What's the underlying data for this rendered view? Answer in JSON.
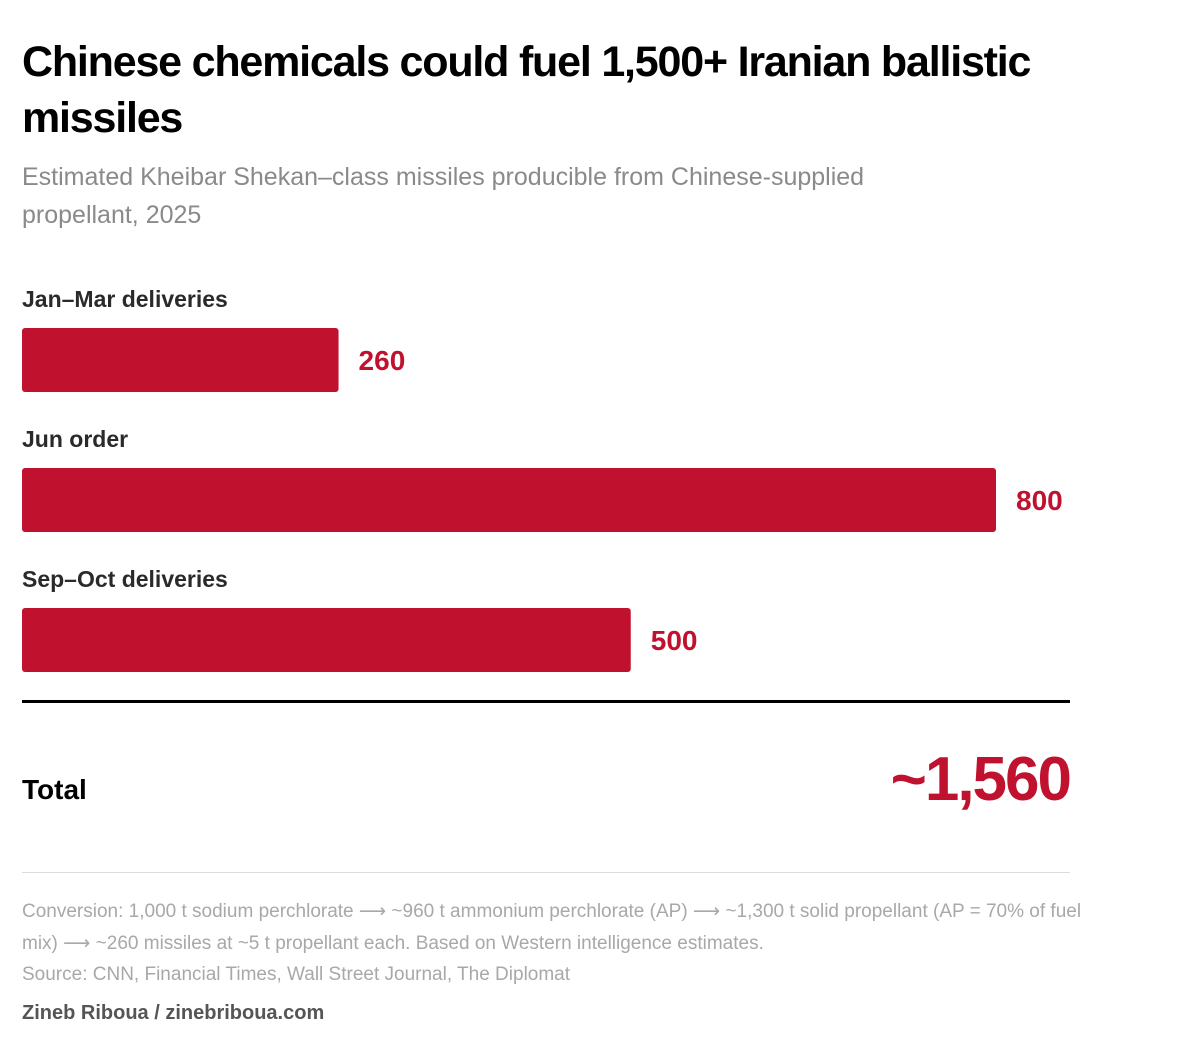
{
  "header": {
    "title": "Chinese chemicals could fuel 1,500+ Iranian ballistic missiles",
    "subtitle": "Estimated Kheibar Shekan–class missiles producible from Chinese-supplied propellant, 2025"
  },
  "chart_data": {
    "type": "bar",
    "orientation": "horizontal",
    "categories": [
      "Jan–Mar deliveries",
      "Jun order",
      "Sep–Oct deliveries"
    ],
    "values": [
      260,
      800,
      500
    ],
    "value_labels": [
      "260",
      "800",
      "500"
    ],
    "title": "Chinese chemicals could fuel 1,500+ Iranian ballistic missiles",
    "xlabel": "",
    "ylabel": "",
    "xlim": [
      0,
      800
    ],
    "grid": false,
    "bar_color": "#c0122f"
  },
  "total": {
    "label": "Total",
    "value": "~1,560"
  },
  "footer": {
    "note": "Conversion: 1,000 t sodium perchlorate ⟶ ~960 t ammonium perchlorate (AP) ⟶ ~1,300 t solid propellant (AP = 70% of fuel mix) ⟶ ~260 missiles at ~5 t propellant each. Based on Western intelligence estimates.",
    "source": "Source: CNN, Financial Times, Wall Street Journal, The Diplomat",
    "credit": "Zineb Riboua / zinebriboua.com"
  },
  "colors": {
    "accent": "#c0122f",
    "text": "#111111",
    "muted": "#8a8a8a"
  }
}
